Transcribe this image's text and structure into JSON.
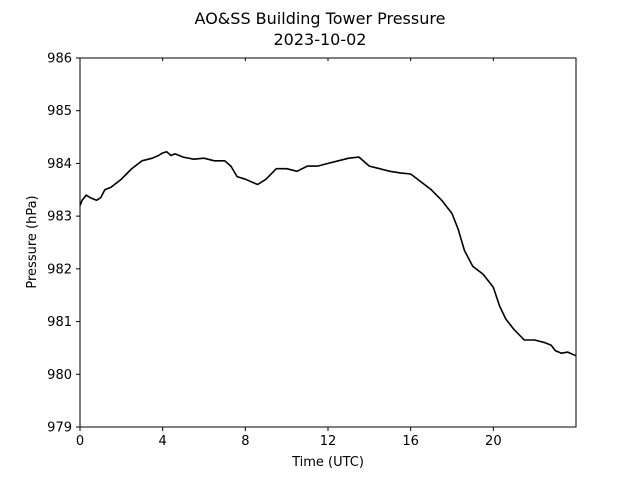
{
  "chart_data": {
    "type": "line",
    "title": "AO&SS Building Tower Pressure",
    "subtitle": "2023-10-02",
    "xlabel": "Time (UTC)",
    "ylabel": "Pressure (hPa)",
    "xlim": [
      0,
      24
    ],
    "ylim": [
      979,
      986
    ],
    "xticks": [
      0,
      4,
      8,
      12,
      16,
      20
    ],
    "yticks": [
      979,
      980,
      981,
      982,
      983,
      984,
      985,
      986
    ],
    "grid": false,
    "line_color": "#000000",
    "series": [
      {
        "x": [
          0,
          0.1,
          0.3,
          0.5,
          0.8,
          1.0,
          1.2,
          1.5,
          2.0,
          2.5,
          3.0,
          3.5,
          3.8,
          4.0,
          4.2,
          4.4,
          4.6,
          5.0,
          5.5,
          6.0,
          6.5,
          7.0,
          7.3,
          7.6,
          8.0,
          8.3,
          8.6,
          9.0,
          9.5,
          10.0,
          10.5,
          11.0,
          11.5,
          12.0,
          12.5,
          13.0,
          13.5,
          14.0,
          14.5,
          15.0,
          15.5,
          16.0,
          16.5,
          17.0,
          17.5,
          18.0,
          18.3,
          18.6,
          19.0,
          19.5,
          20.0,
          20.3,
          20.6,
          21.0,
          21.5,
          22.0,
          22.5,
          22.8,
          23.0,
          23.3,
          23.6,
          24.0
        ],
        "y": [
          983.2,
          983.3,
          983.4,
          983.35,
          983.3,
          983.35,
          983.5,
          983.55,
          983.7,
          983.9,
          984.05,
          984.1,
          984.15,
          984.2,
          984.22,
          984.15,
          984.18,
          984.12,
          984.08,
          984.1,
          984.05,
          984.05,
          983.95,
          983.75,
          983.7,
          983.65,
          983.6,
          983.7,
          983.9,
          983.9,
          983.85,
          983.95,
          983.95,
          984.0,
          984.05,
          984.1,
          984.12,
          983.95,
          983.9,
          983.85,
          983.82,
          983.8,
          983.65,
          983.5,
          983.3,
          983.05,
          982.75,
          982.35,
          982.05,
          981.9,
          981.65,
          981.3,
          981.05,
          980.85,
          980.65,
          980.65,
          980.6,
          980.55,
          980.45,
          980.4,
          980.42,
          980.35
        ]
      }
    ]
  }
}
